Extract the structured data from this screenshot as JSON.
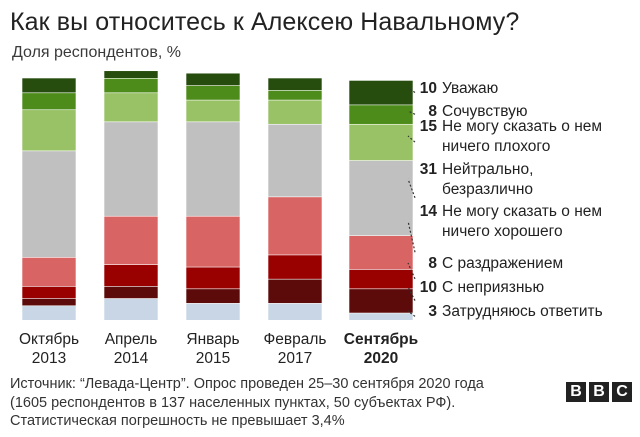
{
  "header": {
    "title": "Как вы относитесь к Алексею Навальному?",
    "subtitle": "Доля респондентов, %"
  },
  "footer": {
    "line1": "Источник: “Левада-Центр”. Опрос проведен 25–30 сентября 2020 года",
    "line2": "(1605 респондентов в 137 населенных пунктах, 50 субъектах РФ).",
    "line3": "Статистическая погрешность не превышает 3,4%"
  },
  "logo": {
    "letters": [
      "B",
      "B",
      "C"
    ]
  },
  "chart_data": {
    "type": "bar",
    "stacked": true,
    "ylim": [
      0,
      100
    ],
    "grid": false,
    "legend_placement": "right",
    "categories": [
      {
        "line1": "Октябрь",
        "line2": "2013",
        "bold": false
      },
      {
        "line1": "Апрель",
        "line2": "2014",
        "bold": false
      },
      {
        "line1": "Январь",
        "line2": "2015",
        "bold": false
      },
      {
        "line1": "Февраль",
        "line2": "2017",
        "bold": false
      },
      {
        "line1": "Сентябрь",
        "line2": "2020",
        "bold": true
      }
    ],
    "series": [
      {
        "label_lines": [
          "Затрудняюсь ответить"
        ],
        "value": 3,
        "color": "#c8d6e5",
        "values": [
          6,
          9,
          7,
          7,
          3
        ]
      },
      {
        "label_lines": [
          "С неприязнью"
        ],
        "value": 10,
        "color": "#5c0a0a",
        "values": [
          3,
          5,
          6,
          10,
          10
        ]
      },
      {
        "label_lines": [
          "С раздражением"
        ],
        "value": 8,
        "color": "#990000",
        "values": [
          5,
          9,
          9,
          10,
          8
        ]
      },
      {
        "label_lines": [
          "Не могу сказать о нем",
          "ничего хорошего"
        ],
        "value": 14,
        "color": "#d96464",
        "values": [
          12,
          20,
          21,
          24,
          14
        ]
      },
      {
        "label_lines": [
          "Нейтрально,",
          "безразлично"
        ],
        "value": 31,
        "color": "#c0c0c0",
        "values": [
          44,
          39,
          39,
          30,
          31
        ]
      },
      {
        "label_lines": [
          "Не могу сказать о нем",
          "ничего плохого"
        ],
        "value": 15,
        "color": "#99c266",
        "values": [
          17,
          12,
          9,
          10,
          15
        ]
      },
      {
        "label_lines": [
          "Сочувствую"
        ],
        "value": 8,
        "color": "#4d8c1a",
        "values": [
          7,
          6,
          6,
          4,
          8
        ]
      },
      {
        "label_lines": [
          "Уважаю"
        ],
        "value": 10,
        "color": "#264d0d",
        "values": [
          6,
          3,
          5,
          5,
          10
        ]
      }
    ]
  }
}
